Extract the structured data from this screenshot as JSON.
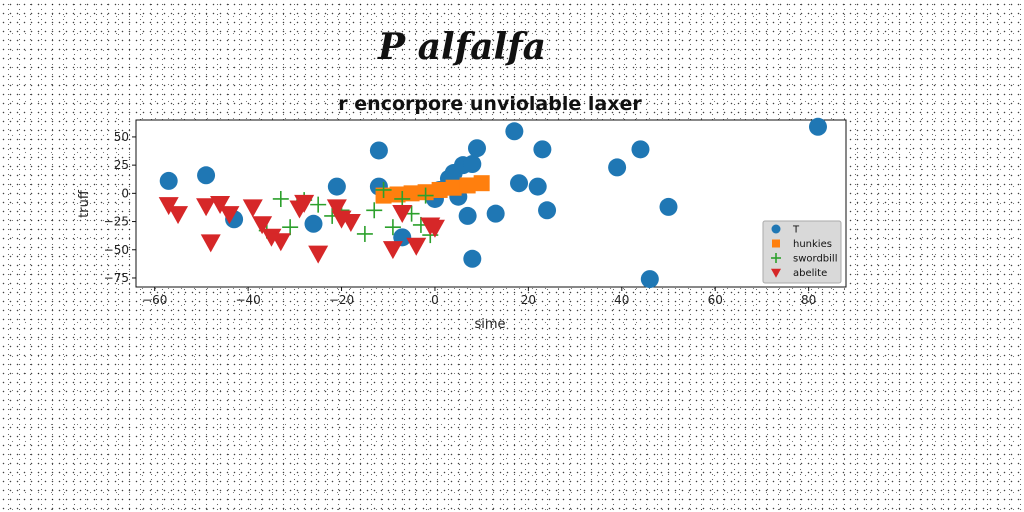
{
  "header": {
    "title": "P alfalfa"
  },
  "chart_data": {
    "type": "scatter",
    "title": "r encorpore unviolable laxer",
    "xlabel": "sime",
    "ylabel": "truff",
    "xlim": [
      -64,
      88
    ],
    "ylim": [
      -83,
      65
    ],
    "xticks": [
      -60,
      -40,
      -20,
      0,
      20,
      40,
      60,
      80
    ],
    "yticks": [
      -75,
      -50,
      -25,
      0,
      25,
      50
    ],
    "grid": false,
    "legend_position": "lower-right",
    "series": [
      {
        "name": "T",
        "marker": "circle",
        "color": "#1f77b4",
        "points": [
          [
            -57,
            11
          ],
          [
            -49,
            16
          ],
          [
            -43,
            -23
          ],
          [
            -21,
            6
          ],
          [
            -26,
            -27
          ],
          [
            -12,
            38
          ],
          [
            -12,
            6
          ],
          [
            -7,
            -39
          ],
          [
            0,
            -5
          ],
          [
            1,
            3
          ],
          [
            3,
            13
          ],
          [
            4,
            18
          ],
          [
            5,
            -3
          ],
          [
            6,
            25
          ],
          [
            7,
            -20
          ],
          [
            8,
            -58
          ],
          [
            8,
            26
          ],
          [
            9,
            40
          ],
          [
            13,
            -18
          ],
          [
            17,
            55
          ],
          [
            18,
            9
          ],
          [
            22,
            6
          ],
          [
            23,
            39
          ],
          [
            24,
            -15
          ],
          [
            39,
            23
          ],
          [
            44,
            39
          ],
          [
            46,
            -76
          ],
          [
            50,
            -12
          ],
          [
            82,
            59
          ]
        ]
      },
      {
        "name": "hunkies",
        "marker": "square",
        "color": "#ff7f0e",
        "points": [
          [
            -11,
            -2
          ],
          [
            -8,
            -1
          ],
          [
            -5,
            0
          ],
          [
            -2,
            1
          ],
          [
            1,
            3
          ],
          [
            4,
            5
          ],
          [
            7,
            7
          ],
          [
            10,
            9
          ]
        ]
      },
      {
        "name": "swordbill",
        "marker": "plus",
        "color": "#2ca02c",
        "points": [
          [
            -36,
            -33
          ],
          [
            -33,
            -5
          ],
          [
            -31,
            -30
          ],
          [
            -28,
            -6
          ],
          [
            -25,
            -10
          ],
          [
            -22,
            -20
          ],
          [
            -20,
            -15
          ],
          [
            -15,
            -36
          ],
          [
            -13,
            -15
          ],
          [
            -11,
            3
          ],
          [
            -9,
            -30
          ],
          [
            -7,
            -5
          ],
          [
            -5,
            -18
          ],
          [
            -3,
            -28
          ],
          [
            -2,
            -2
          ],
          [
            -1,
            -37
          ]
        ]
      },
      {
        "name": "abelite",
        "marker": "triangle-down",
        "color": "#d62728",
        "points": [
          [
            -57,
            -10
          ],
          [
            -55,
            -18
          ],
          [
            -49,
            -11
          ],
          [
            -48,
            -43
          ],
          [
            -46,
            -9
          ],
          [
            -44,
            -18
          ],
          [
            -39,
            -12
          ],
          [
            -37,
            -27
          ],
          [
            -35,
            -38
          ],
          [
            -33,
            -42
          ],
          [
            -29,
            -13
          ],
          [
            -28,
            -8
          ],
          [
            -25,
            -53
          ],
          [
            -21,
            -12
          ],
          [
            -20,
            -22
          ],
          [
            -18,
            -25
          ],
          [
            -9,
            -49
          ],
          [
            -7,
            -17
          ],
          [
            -4,
            -46
          ],
          [
            -1,
            -28
          ],
          [
            0,
            -30
          ]
        ]
      }
    ]
  }
}
